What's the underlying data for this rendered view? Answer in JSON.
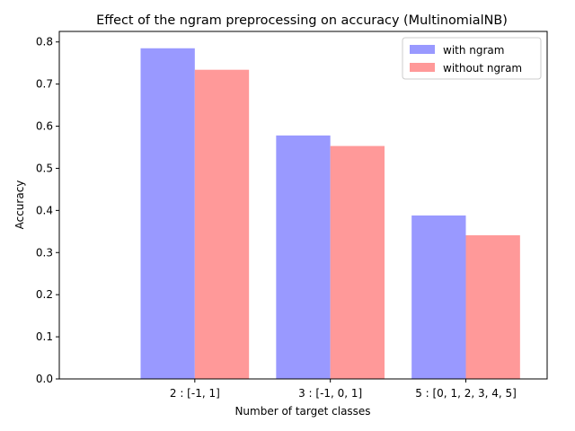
{
  "chart_data": {
    "type": "bar",
    "title": "Effect of the ngram preprocessing on accuracy (MultinomialNB)",
    "xlabel": "Number of target classes",
    "ylabel": "Accuracy",
    "categories": [
      "2 : [-1, 1]",
      "3 : [-1, 0, 1]",
      "5 : [0, 1, 2, 3, 4, 5]"
    ],
    "series": [
      {
        "name": "with ngram",
        "values": [
          0.785,
          0.578,
          0.388
        ],
        "color": "#9999ff"
      },
      {
        "name": "without ngram",
        "values": [
          0.734,
          0.553,
          0.341
        ],
        "color": "#ff9999"
      }
    ],
    "ylim": [
      0,
      0.825
    ],
    "yticks": [
      0.0,
      0.1,
      0.2,
      0.3,
      0.4,
      0.5,
      0.6,
      0.7,
      0.8
    ],
    "ytick_labels": [
      "0.0",
      "0.1",
      "0.2",
      "0.3",
      "0.4",
      "0.5",
      "0.6",
      "0.7",
      "0.8"
    ],
    "grid": false,
    "legend_position": "top-right"
  }
}
